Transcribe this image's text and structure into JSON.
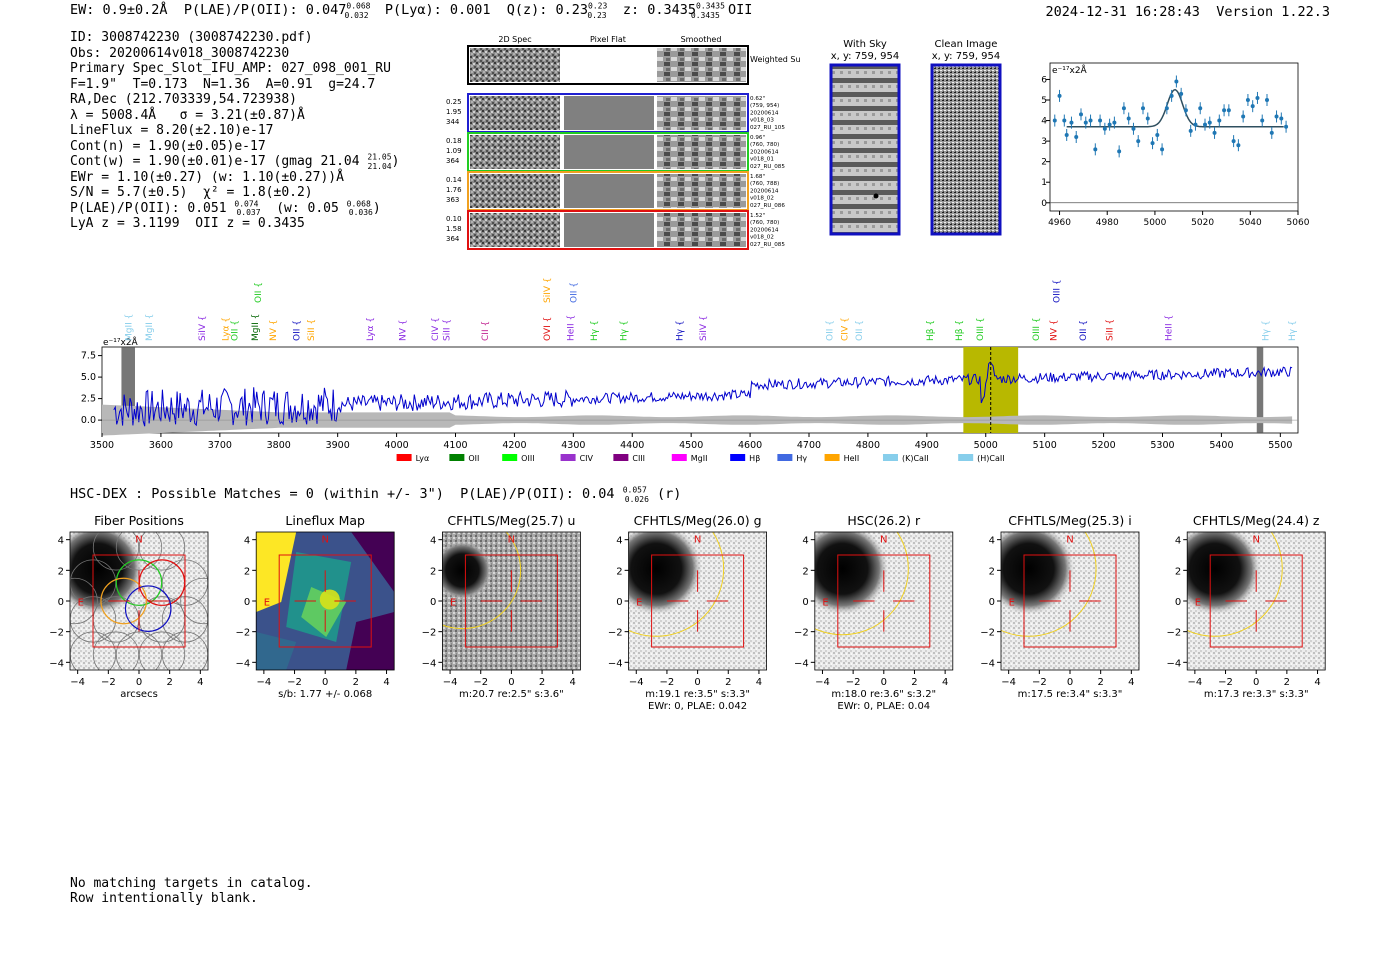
{
  "header": {
    "ew": "EW: 0.9±0.2Å",
    "plae_label": "P(LAE)/P(OII): 0.047",
    "plae_hi": "0.068",
    "plae_lo": "0.032",
    "plya": "P(Lyα): 0.001",
    "qz_label": "Q(z): 0.23",
    "qz_hi": "0.23",
    "qz_lo": "0.23",
    "z_label": "z: 0.3435",
    "z_hi": "0.3435",
    "z_lo": "0.3435",
    "z_line": "OII",
    "timestamp": "2024-12-31 16:28:43",
    "version": "Version 1.22.3"
  },
  "info": {
    "id": "ID: 3008742230 (3008742230.pdf)",
    "obs": "Obs: 20200614v018_3008742230",
    "primary": "Primary Spec_Slot_IFU_AMP: 027_098_001_RU",
    "fwhm": "F=1.9\"  T=0.173  N=1.36  A=0.91  g=24.7",
    "radec": "RA,Dec (212.703339,54.723938)",
    "lambda": "λ = 5008.4Å   σ = 3.21(±0.87)Å",
    "lineflux": "LineFlux = 8.20(±2.10)e-17",
    "cont_n": "Cont(n) = 1.90(±0.05)e-17",
    "cont_w": "Cont(w) = 1.90(±0.01)e-17 (gmag 21.04",
    "gmag_hi": "21.05",
    "gmag_lo": "21.04",
    "ewr": "EWr = 1.10(±0.27) (w: 1.10(±0.27))Å",
    "sn": "S/N = 5.7(±0.5)  χ² = 1.8(±0.2)",
    "plae2_a": "P(LAE)/P(OII): 0.051",
    "plae2_hi": "0.074",
    "plae2_lo": "0.037",
    "plae2_b": "(w: 0.05",
    "plae2_whi": "0.068",
    "plae2_wlo": "0.036",
    "lya_z": "LyA z = 3.1199  OII z = 0.3435"
  },
  "cutouts": {
    "col_2d": "2D Spec",
    "col_flat": "Pixel Flat",
    "col_smooth": "Smoothed",
    "weighted": "Weighted Sum",
    "rows": [
      {
        "n1": "0.25",
        "n2": "1.95",
        "n3": "344",
        "d1": "0.62\"",
        "d2": "(759, 954)",
        "d3": "20200614",
        "d4": "v018_03",
        "d5": "027_RU_105",
        "color": "#1f1fd0"
      },
      {
        "n1": "0.18",
        "n2": "1.09",
        "n3": "364",
        "d1": "0.96\"",
        "d2": "(760, 780)",
        "d3": "20200614",
        "d4": "v018_01",
        "d5": "027_RU_085",
        "color": "#22cc22"
      },
      {
        "n1": "0.14",
        "n2": "1.76",
        "n3": "363",
        "d1": "1.68\"",
        "d2": "(760, 788)",
        "d3": "20200614",
        "d4": "v018_02",
        "d5": "027_RU_086",
        "color": "#f0a020"
      },
      {
        "n1": "0.10",
        "n2": "1.58",
        "n3": "364",
        "d1": "1.52\"",
        "d2": "(760, 780)",
        "d3": "20200614",
        "d4": "v018_02",
        "d5": "027_RU_085",
        "color": "#e01010"
      }
    ]
  },
  "sky": {
    "with_sky": "With Sky",
    "with_sky_xy": "x, y: 759, 954",
    "clean": "Clean Image",
    "clean_xy": "x, y: 759, 954"
  },
  "zoom_chart": {
    "unit": "e⁻¹⁷x2Å",
    "xticks": [
      "4960",
      "4980",
      "5000",
      "5020",
      "5040",
      "5060"
    ],
    "yticks": [
      "0",
      "1",
      "2",
      "3",
      "4",
      "5",
      "6"
    ]
  },
  "spectrum": {
    "unit": "e⁻¹⁷x2Å",
    "xticks": [
      "3500",
      "3600",
      "3700",
      "3800",
      "3900",
      "4000",
      "4100",
      "4200",
      "4300",
      "4400",
      "4500",
      "4600",
      "4700",
      "4800",
      "4900",
      "5000",
      "5100",
      "5200",
      "5300",
      "5400",
      "5500"
    ],
    "yticks": [
      "7.5",
      "5.0",
      "2.5",
      "0.0"
    ],
    "line_labels": [
      {
        "t": "MgII",
        "w": 3545,
        "c": "#87ceeb",
        "row": 2
      },
      {
        "t": "MgII",
        "w": 3580,
        "c": "#87ceeb",
        "row": 2
      },
      {
        "t": "SiIV",
        "w": 3670,
        "c": "#8b2be2",
        "row": 2
      },
      {
        "t": "Lyα",
        "w": 3710,
        "c": "#ffa500",
        "row": 2
      },
      {
        "t": "OII",
        "w": 3725,
        "c": "#22cc22",
        "row": 2
      },
      {
        "t": "MgII",
        "w": 3760,
        "c": "#006400",
        "row": 2
      },
      {
        "t": "OII",
        "w": 3765,
        "c": "#22cc22",
        "row": 0
      },
      {
        "t": "NV",
        "w": 3790,
        "c": "#ffa500",
        "row": 2
      },
      {
        "t": "OII",
        "w": 3830,
        "c": "#1010c0",
        "row": 2
      },
      {
        "t": "SiII",
        "w": 3855,
        "c": "#ffa500",
        "row": 2
      },
      {
        "t": "Lyα",
        "w": 3955,
        "c": "#8b2be2",
        "row": 2
      },
      {
        "t": "NV",
        "w": 4010,
        "c": "#8b2be2",
        "row": 2
      },
      {
        "t": "CIV",
        "w": 4065,
        "c": "#8b2be2",
        "row": 2
      },
      {
        "t": "SiII",
        "w": 4085,
        "c": "#8b2be2",
        "row": 2
      },
      {
        "t": "CII",
        "w": 4150,
        "c": "#c0208f",
        "row": 2
      },
      {
        "t": "OVI",
        "w": 4255,
        "c": "#e01010",
        "row": 2
      },
      {
        "t": "SiIV",
        "w": 4255,
        "c": "#ffa500",
        "row": 0
      },
      {
        "t": "HeII",
        "w": 4295,
        "c": "#8b2be2",
        "row": 2
      },
      {
        "t": "OII",
        "w": 4300,
        "c": "#4169e1",
        "row": 0
      },
      {
        "t": "Hγ",
        "w": 4335,
        "c": "#22cc22",
        "row": 2
      },
      {
        "t": "Hγ",
        "w": 4385,
        "c": "#22cc22",
        "row": 2
      },
      {
        "t": "Hγ",
        "w": 4480,
        "c": "#1010c0",
        "row": 2
      },
      {
        "t": "SiIV",
        "w": 4520,
        "c": "#8b2be2",
        "row": 2
      },
      {
        "t": "OII",
        "w": 4735,
        "c": "#87ceeb",
        "row": 2
      },
      {
        "t": "CIV",
        "w": 4760,
        "c": "#ffa500",
        "row": 2
      },
      {
        "t": "OII",
        "w": 4785,
        "c": "#87ceeb",
        "row": 2
      },
      {
        "t": "Hβ",
        "w": 4905,
        "c": "#22cc22",
        "row": 2
      },
      {
        "t": "Hβ",
        "w": 4955,
        "c": "#22cc22",
        "row": 2
      },
      {
        "t": "OIII",
        "w": 4990,
        "c": "#22cc22",
        "row": 2
      },
      {
        "t": "OIII",
        "w": 5085,
        "c": "#22cc22",
        "row": 2
      },
      {
        "t": "NV",
        "w": 5115,
        "c": "#e01010",
        "row": 2
      },
      {
        "t": "OIII",
        "w": 5120,
        "c": "#1010c0",
        "row": 0
      },
      {
        "t": "OII",
        "w": 5165,
        "c": "#1010c0",
        "row": 2
      },
      {
        "t": "SiII",
        "w": 5210,
        "c": "#e01010",
        "row": 2
      },
      {
        "t": "HeII",
        "w": 5310,
        "c": "#8b2be2",
        "row": 2
      },
      {
        "t": "Hγ",
        "w": 5475,
        "c": "#87ceeb",
        "row": 2
      },
      {
        "t": "Hγ",
        "w": 5520,
        "c": "#87ceeb",
        "row": 2
      }
    ],
    "legend": [
      {
        "t": "Lyα",
        "c": "#ff0000"
      },
      {
        "t": "OII",
        "c": "#008000"
      },
      {
        "t": "OIII",
        "c": "#00ff00"
      },
      {
        "t": "CIV",
        "c": "#9932cc"
      },
      {
        "t": "CIII",
        "c": "#800080"
      },
      {
        "t": "MgII",
        "c": "#ff00ff"
      },
      {
        "t": "Hβ",
        "c": "#0000ff"
      },
      {
        "t": "Hγ",
        "c": "#4169e1"
      },
      {
        "t": "HeII",
        "c": "#ffa500"
      },
      {
        "t": "(K)CaII",
        "c": "#87ceeb"
      },
      {
        "t": "(H)CaII",
        "c": "#87ceeb"
      }
    ]
  },
  "hsc": {
    "line_a": "HSC-DEX : Possible Matches = 0 (within +/- 3\")  P(LAE)/P(OII): 0.04",
    "hi": "0.057",
    "lo": "0.026",
    "line_b": "(r)"
  },
  "panels": {
    "ticks": [
      "−4",
      "−2",
      "0",
      "2",
      "4"
    ],
    "N": "N",
    "E": "E",
    "items": [
      {
        "title": "Fiber Positions",
        "cap1": "arcsecs",
        "cap2": ""
      },
      {
        "title": "Lineflux Map",
        "cap1": "s/b: 1.77 +/- 0.068",
        "cap2": ""
      },
      {
        "title": "CFHTLS/Meg(25.7) u",
        "cap1": "m:20.7   re:2.5\"   s:3.6\"",
        "cap2": ""
      },
      {
        "title": "CFHTLS/Meg(26.0) g",
        "cap1": "m:19.1   re:3.5\"   s:3.3\"",
        "cap2": "EWr: 0, PLAE: 0.042"
      },
      {
        "title": "HSC(26.2) r",
        "cap1": "m:18.0   re:3.6\"   s:3.2\"",
        "cap2": "EWr: 0, PLAE: 0.04"
      },
      {
        "title": "CFHTLS/Meg(25.3) i",
        "cap1": "m:17.5   re:3.4\"   s:3.3\"",
        "cap2": ""
      },
      {
        "title": "CFHTLS/Meg(24.4) z",
        "cap1": "m:17.3   re:3.3\"   s:3.3\"",
        "cap2": ""
      }
    ]
  },
  "footer": {
    "line1": "No matching targets in catalog.",
    "line2": "Row intentionally blank."
  },
  "chart_data": [
    {
      "type": "scatter",
      "title": "",
      "xlabel": "",
      "ylabel": "e⁻¹⁷x2Å",
      "xlim": [
        4956,
        5060
      ],
      "ylim": [
        -0.4,
        6.8
      ],
      "x": [
        4958,
        4960,
        4962,
        4963,
        4965,
        4967,
        4969,
        4971,
        4973,
        4975,
        4977,
        4979,
        4981,
        4983,
        4985,
        4987,
        4989,
        4991,
        4993,
        4995,
        4997,
        4999,
        5001,
        5003,
        5005,
        5007,
        5009,
        5011,
        5013,
        5015,
        5017,
        5019,
        5021,
        5023,
        5025,
        5027,
        5029,
        5031,
        5033,
        5035,
        5037,
        5039,
        5041,
        5043,
        5045,
        5047,
        5049,
        5051,
        5053,
        5055
      ],
      "y": [
        4.0,
        5.2,
        4.0,
        3.3,
        3.9,
        3.2,
        4.3,
        3.9,
        4.0,
        2.6,
        4.0,
        3.6,
        3.8,
        3.9,
        2.5,
        4.6,
        4.1,
        3.6,
        3.0,
        4.6,
        4.1,
        2.9,
        3.3,
        2.6,
        4.6,
        5.2,
        5.9,
        5.3,
        4.5,
        3.5,
        3.8,
        4.6,
        3.8,
        3.9,
        3.4,
        4.0,
        4.5,
        4.5,
        3.0,
        2.8,
        4.2,
        5.0,
        4.7,
        5.1,
        4.0,
        5.0,
        3.4,
        4.2,
        4.1,
        3.7
      ],
      "fit": {
        "continuum": 3.7,
        "center": 5008.4,
        "sigma": 3.21,
        "peak": 5.5
      }
    },
    {
      "type": "line",
      "title": "",
      "xlabel": "",
      "ylabel": "e⁻¹⁷x2Å",
      "xlim": [
        3500,
        5530
      ],
      "ylim": [
        -1.5,
        8.5
      ],
      "series": [],
      "highlight_band": [
        4962,
        5055
      ],
      "line_marker": 5008.4
    }
  ]
}
